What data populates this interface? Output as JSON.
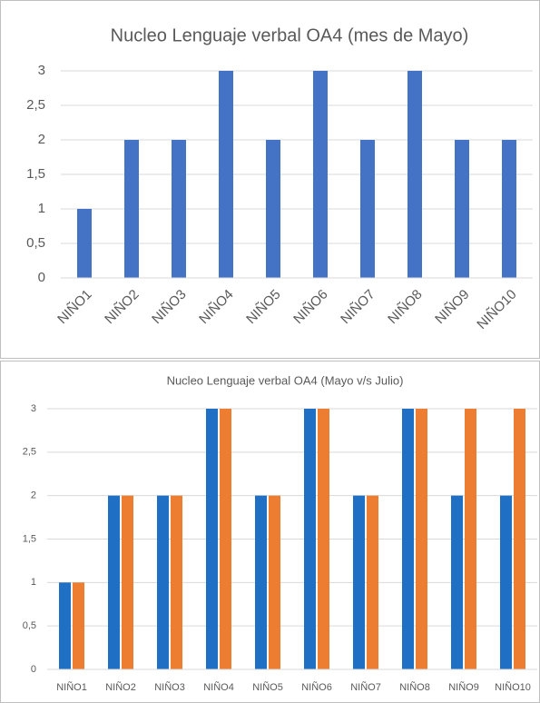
{
  "chart_data": [
    {
      "type": "bar",
      "title": "Nucleo Lenguaje verbal OA4 (mes de Mayo)",
      "categories": [
        "NIÑO1",
        "NIÑO2",
        "NIÑO3",
        "NIÑO4",
        "NIÑO5",
        "NIÑO6",
        "NIÑO7",
        "NIÑO8",
        "NIÑO9",
        "NIÑO10"
      ],
      "series": [
        {
          "color": "#4472c4",
          "values": [
            1,
            2,
            2,
            3,
            2,
            3,
            2,
            3,
            2,
            2
          ]
        }
      ],
      "ylim": [
        0,
        3
      ],
      "yticks": [
        0,
        {
          "value": 0.5,
          "label": "0,5"
        },
        1,
        {
          "value": 1.5,
          "label": "1,5"
        },
        2,
        {
          "value": 2.5,
          "label": "2,5"
        },
        3
      ],
      "grid": true
    },
    {
      "type": "bar",
      "title": "Nucleo Lenguaje verbal OA4 (Mayo v/s Julio)",
      "categories": [
        "NIÑO1",
        "NIÑO2",
        "NIÑO3",
        "NIÑO4",
        "NIÑO5",
        "NIÑO6",
        "NIÑO7",
        "NIÑO8",
        "NIÑO9",
        "NIÑO10"
      ],
      "series": [
        {
          "color": "#1f6fc5",
          "values": [
            1,
            2,
            2,
            3,
            2,
            3,
            2,
            3,
            2,
            2
          ]
        },
        {
          "color": "#ed7d31",
          "values": [
            1,
            2,
            2,
            3,
            2,
            3,
            2,
            3,
            3,
            3
          ]
        }
      ],
      "ylim": [
        0,
        3
      ],
      "yticks": [
        0,
        {
          "value": 0.5,
          "label": "0,5"
        },
        1,
        {
          "value": 1.5,
          "label": "1,5"
        },
        2,
        {
          "value": 2.5,
          "label": "2,5"
        },
        3
      ],
      "grid": true
    }
  ]
}
